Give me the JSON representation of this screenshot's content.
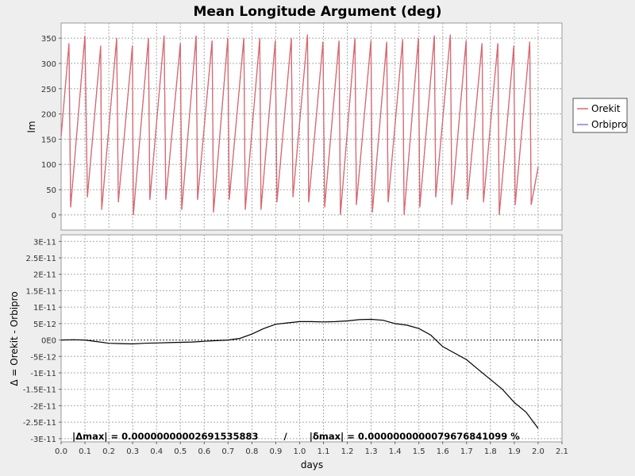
{
  "chart_data": [
    {
      "type": "line",
      "title": "Mean Longitude Argument (deg)",
      "ylabel": "lm",
      "xlim": [
        0.0,
        2.1
      ],
      "ylim": [
        -30,
        380
      ],
      "yticks": [
        "0",
        "50",
        "100",
        "150",
        "200",
        "250",
        "300",
        "350"
      ],
      "grid": true,
      "legend_placement": "right",
      "series": [
        {
          "name": "Orekit",
          "color": "#e06666",
          "x": [
            0.0,
            0.033,
            0.04,
            0.1,
            0.11,
            0.166,
            0.17,
            0.233,
            0.24,
            0.299,
            0.303,
            0.366,
            0.372,
            0.432,
            0.439,
            0.5,
            0.506,
            0.566,
            0.572,
            0.633,
            0.639,
            0.699,
            0.705,
            0.766,
            0.772,
            0.833,
            0.838,
            0.898,
            0.905,
            0.965,
            0.972,
            1.033,
            1.038,
            1.098,
            1.105,
            1.165,
            1.171,
            1.232,
            1.238,
            1.299,
            1.305,
            1.365,
            1.371,
            1.432,
            1.438,
            1.498,
            1.504,
            1.565,
            1.571,
            1.632,
            1.638,
            1.698,
            1.704,
            1.765,
            1.771,
            1.831,
            1.837,
            1.898,
            1.904,
            1.965,
            1.971,
            2.0
          ],
          "y": [
            155,
            340,
            15,
            355,
            35,
            335,
            10,
            350,
            25,
            335,
            0,
            350,
            30,
            355,
            30,
            340,
            10,
            355,
            30,
            345,
            5,
            350,
            30,
            350,
            10,
            350,
            10,
            345,
            25,
            350,
            35,
            357,
            25,
            343,
            15,
            345,
            0,
            350,
            20,
            345,
            5,
            343,
            25,
            348,
            0,
            350,
            15,
            355,
            35,
            357,
            20,
            345,
            30,
            340,
            25,
            340,
            0,
            335,
            20,
            343,
            20,
            95
          ]
        },
        {
          "name": "Orbipro",
          "color": "#8080dd",
          "x": [
            0.0,
            0.033,
            0.04,
            0.1,
            0.11,
            0.166,
            0.17,
            0.233,
            0.24,
            0.299,
            0.303,
            0.366,
            0.372,
            0.432,
            0.439,
            0.5,
            0.506,
            0.566,
            0.572,
            0.633,
            0.639,
            0.699,
            0.705,
            0.766,
            0.772,
            0.833,
            0.838,
            0.898,
            0.905,
            0.965,
            0.972,
            1.033,
            1.038,
            1.098,
            1.105,
            1.165,
            1.171,
            1.232,
            1.238,
            1.299,
            1.305,
            1.365,
            1.371,
            1.432,
            1.438,
            1.498,
            1.504,
            1.565,
            1.571,
            1.632,
            1.638,
            1.698,
            1.704,
            1.765,
            1.771,
            1.831,
            1.837,
            1.898,
            1.904,
            1.965,
            1.971,
            2.0
          ],
          "y": [
            155,
            340,
            15,
            355,
            35,
            335,
            10,
            350,
            25,
            335,
            0,
            350,
            30,
            355,
            30,
            340,
            10,
            355,
            30,
            345,
            5,
            350,
            30,
            350,
            10,
            350,
            10,
            345,
            25,
            350,
            35,
            357,
            25,
            343,
            15,
            345,
            0,
            350,
            20,
            345,
            5,
            343,
            25,
            348,
            0,
            350,
            15,
            355,
            35,
            357,
            20,
            345,
            30,
            340,
            25,
            340,
            0,
            335,
            20,
            343,
            20,
            95
          ]
        }
      ]
    },
    {
      "type": "line",
      "ylabel": "Δ = Orekit - Orbipro",
      "xlabel": "days",
      "xlim": [
        0.0,
        2.1
      ],
      "ylim": [
        -3.1e-11,
        3.2e-11
      ],
      "xticks": [
        "0.0",
        "0.1",
        "0.2",
        "0.3",
        "0.4",
        "0.5",
        "0.6",
        "0.7",
        "0.8",
        "0.9",
        "1.0",
        "1.1",
        "1.2",
        "1.3",
        "1.4",
        "1.5",
        "1.6",
        "1.7",
        "1.8",
        "1.9",
        "2.0",
        "2.1"
      ],
      "yticks": [
        "3E-11",
        "2.5E-11",
        "2E-11",
        "1.5E-11",
        "1E-11",
        "5E-12",
        "0E0",
        "-5E-12",
        "-1E-11",
        "-1.5E-11",
        "-2E-11",
        "-2.5E-11",
        "-3E-11"
      ],
      "grid": true,
      "annotation": "|Δmax| = 0.00000000002691535883        /       |δmax| = 0.0000000000079676841099 %",
      "series": [
        {
          "color": "#000000",
          "x": [
            0.0,
            0.05,
            0.1,
            0.15,
            0.2,
            0.25,
            0.3,
            0.35,
            0.4,
            0.45,
            0.5,
            0.55,
            0.6,
            0.65,
            0.7,
            0.75,
            0.8,
            0.85,
            0.9,
            0.95,
            1.0,
            1.05,
            1.1,
            1.15,
            1.2,
            1.25,
            1.3,
            1.35,
            1.4,
            1.45,
            1.5,
            1.55,
            1.6,
            1.65,
            1.7,
            1.75,
            1.8,
            1.85,
            1.9,
            1.95,
            2.0
          ],
          "y": [
            0,
            1e-13,
            0,
            -5e-13,
            -1e-12,
            -1.1e-12,
            -1.2e-12,
            -1e-12,
            -9e-13,
            -8e-13,
            -7e-13,
            -6e-13,
            -4e-13,
            -2e-13,
            0,
            5e-13,
            1.8e-12,
            3.5e-12,
            4.8e-12,
            5.2e-12,
            5.6e-12,
            5.6e-12,
            5.5e-12,
            5.6e-12,
            5.8e-12,
            6.2e-12,
            6.3e-12,
            6e-12,
            5e-12,
            4.5e-12,
            3.5e-12,
            1.5e-12,
            -2e-12,
            -4e-12,
            -6e-12,
            -9e-12,
            -1.2e-11,
            -1.5e-11,
            -1.9e-11,
            -2.2e-11,
            -2.69e-11
          ]
        }
      ]
    }
  ]
}
